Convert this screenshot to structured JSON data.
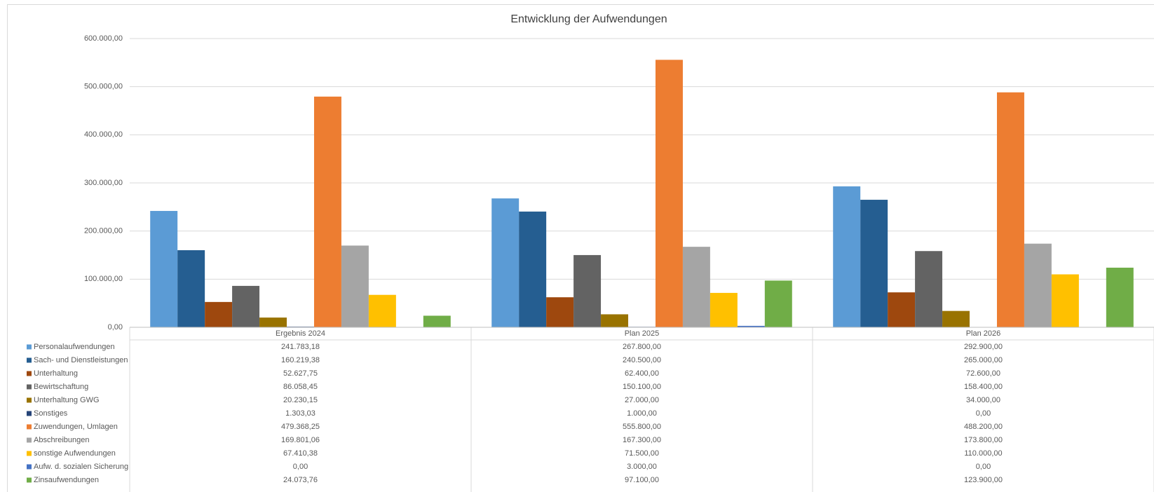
{
  "chart_data": {
    "type": "bar",
    "title": "Entwicklung der Aufwendungen",
    "categories": [
      "Ergebnis 2024",
      "Plan 2025",
      "Plan 2026"
    ],
    "ylim": [
      0,
      600000
    ],
    "yticks": [
      {
        "value": 0,
        "label": "0,00"
      },
      {
        "value": 100000,
        "label": "100.000,00"
      },
      {
        "value": 200000,
        "label": "200.000,00"
      },
      {
        "value": 300000,
        "label": "300.000,00"
      },
      {
        "value": 400000,
        "label": "400.000,00"
      },
      {
        "value": 500000,
        "label": "500.000,00"
      },
      {
        "value": 600000,
        "label": "600.000,00"
      }
    ],
    "grid": true,
    "series": [
      {
        "name": "Personalaufwendungen",
        "color": "#5b9bd5",
        "values": [
          241783.18,
          267800,
          292900
        ],
        "value_labels": [
          "241.783,18",
          "267.800,00",
          "292.900,00"
        ]
      },
      {
        "name": "Sach- und Dienstleistungen",
        "color": "#255e91",
        "values": [
          160219.38,
          240500,
          265000
        ],
        "value_labels": [
          "160.219,38",
          "240.500,00",
          "265.000,00"
        ]
      },
      {
        "name": "Unterhaltung",
        "color": "#9e480e",
        "values": [
          52627.75,
          62400,
          72600
        ],
        "value_labels": [
          "52.627,75",
          "62.400,00",
          "72.600,00"
        ]
      },
      {
        "name": "Bewirtschaftung",
        "color": "#636363",
        "values": [
          86058.45,
          150100,
          158400
        ],
        "value_labels": [
          "86.058,45",
          "150.100,00",
          "158.400,00"
        ]
      },
      {
        "name": "Unterhaltung GWG",
        "color": "#997300",
        "values": [
          20230.15,
          27000,
          34000
        ],
        "value_labels": [
          "20.230,15",
          "27.000,00",
          "34.000,00"
        ]
      },
      {
        "name": "Sonstiges",
        "color": "#264478",
        "values": [
          1303.03,
          1000,
          0
        ],
        "value_labels": [
          "1.303,03",
          "1.000,00",
          "0,00"
        ]
      },
      {
        "name": "Zuwendungen, Umlagen",
        "color": "#ed7d31",
        "values": [
          479368.25,
          555800,
          488200
        ],
        "value_labels": [
          "479.368,25",
          "555.800,00",
          "488.200,00"
        ]
      },
      {
        "name": "Abschreibungen",
        "color": "#a5a5a5",
        "values": [
          169801.06,
          167300,
          173800
        ],
        "value_labels": [
          "169.801,06",
          "167.300,00",
          "173.800,00"
        ]
      },
      {
        "name": "sonstige Aufwendungen",
        "color": "#ffc000",
        "values": [
          67410.38,
          71500,
          110000
        ],
        "value_labels": [
          "67.410,38",
          "71.500,00",
          "110.000,00"
        ]
      },
      {
        "name": "Aufw. d. sozialen Sicherung",
        "color": "#4472c4",
        "values": [
          0,
          3000,
          0
        ],
        "value_labels": [
          "0,00",
          "3.000,00",
          "0,00"
        ]
      },
      {
        "name": "Zinsaufwendungen",
        "color": "#70ad47",
        "values": [
          24073.76,
          97100,
          123900
        ],
        "value_labels": [
          "24.073,76",
          "97.100,00",
          "123.900,00"
        ]
      }
    ]
  }
}
